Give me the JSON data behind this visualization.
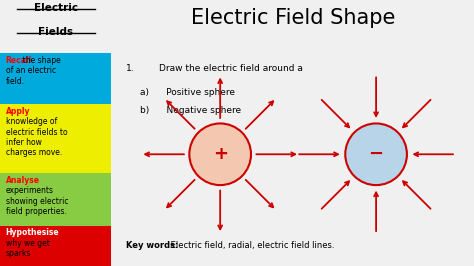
{
  "title": "Electric Field Shape",
  "sidebar_sections": [
    {
      "label": "Recall",
      "label_color": "#FF0000",
      "text": " the shape\nof an electric\nfield.",
      "bg": "#00AADD"
    },
    {
      "label": "Apply",
      "label_color": "#FF0000",
      "text": "\nknowledge of\nelectric fields to\ninfer how\ncharges move.",
      "bg": "#EEEE00"
    },
    {
      "label": "Analyse",
      "label_color": "#FF0000",
      "text": "\nexperiments\nshowing electric\nfield properties.",
      "bg": "#88CC44"
    },
    {
      "label": "Hypothesise",
      "label_color": "#FFFFFF",
      "text": "\nwhy we get\nsparks",
      "bg": "#DD0000"
    }
  ],
  "question_num": "1.",
  "question_main": "Draw the electric field around a",
  "question_a": "a)      Positive sphere",
  "question_b": "b)      Negative sphere",
  "key_words_bold": "Key words:",
  "key_words_rest": " Electric field, radial, electric field lines.",
  "pos_sphere_color": "#F4C8B0",
  "neg_sphere_color": "#B8D4E8",
  "arrow_color": "#CC0000",
  "main_bg": "#F0F0F0"
}
